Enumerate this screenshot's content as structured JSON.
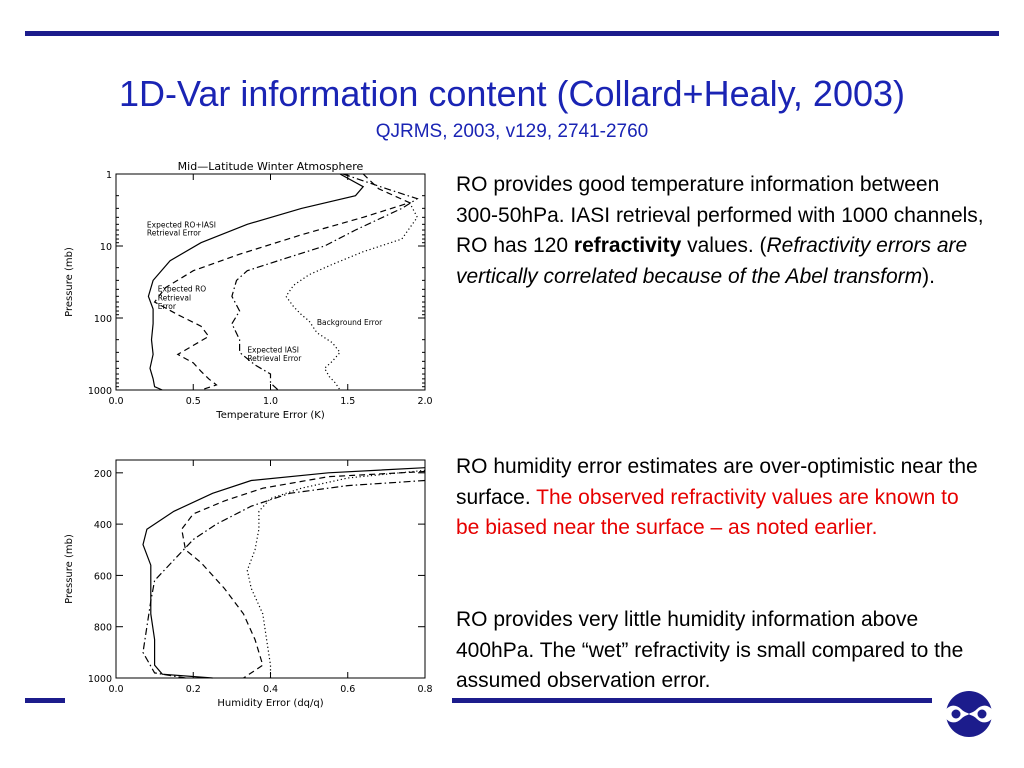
{
  "slide": {
    "title": "1D-Var information content (Collard+Healy, 2003)",
    "subtitle": "QJRMS, 2003, v129, 2741-2760"
  },
  "text": {
    "p1_part1": "RO provides good temperature information between 300-50hPa. IASI retrieval performed with 1000 channels, RO has 120 ",
    "p1_bold": "refractivity",
    "p1_part2": " values. (",
    "p1_italic": "Refractivity errors are vertically correlated because of the Abel transform",
    "p1_part3": ").",
    "p2_plain": "RO humidity error estimates are over-optimistic near the surface. ",
    "p2_red": "The observed refractivity values are known to be biased near the surface – as noted earlier.",
    "p3": "RO provides very little humidity information above 400hPa. The “wet” refractivity is small compared to the assumed observation error."
  },
  "colors": {
    "title": "#1a24b4",
    "rule": "#1c1c8c",
    "highlight": "#e60000",
    "logo": "#1c1c8c"
  },
  "logo_icon": "ecmwf-logo-icon",
  "chart_data": [
    {
      "type": "line",
      "title": "Mid—Latitude Winter Atmosphere",
      "xlabel": "Temperature Error (K)",
      "ylabel": "Pressure (mb)",
      "xlim": [
        0,
        2
      ],
      "ylim": [
        1000,
        1
      ],
      "y_scale": "log",
      "x_ticks": [
        "0.0",
        "0.5",
        "1.0",
        "1.5",
        "2.0"
      ],
      "y_ticks": [
        {
          "v": 1,
          "label": "1"
        },
        {
          "v": 10,
          "label": "10"
        },
        {
          "v": 100,
          "label": "100"
        },
        {
          "v": 1000,
          "label": "1000"
        }
      ],
      "annotations": [
        {
          "text": "Expected RO+IASI",
          "x": 0.2,
          "y": 5.5
        },
        {
          "text": "Retrieval Error",
          "x": 0.2,
          "y": 7.2
        },
        {
          "text": "Expected RO",
          "x": 0.27,
          "y": 43
        },
        {
          "text": "Retrieval",
          "x": 0.27,
          "y": 57
        },
        {
          "text": "Error",
          "x": 0.27,
          "y": 75
        },
        {
          "text": "Background Error",
          "x": 1.3,
          "y": 125
        },
        {
          "text": "Expected IASI",
          "x": 0.85,
          "y": 300
        },
        {
          "text": "Retrieval Error",
          "x": 0.85,
          "y": 395
        }
      ],
      "series": [
        {
          "style": "solid",
          "points": [
            [
              1.45,
              1
            ],
            [
              1.6,
              1.5
            ],
            [
              1.55,
              2
            ],
            [
              1.2,
              3
            ],
            [
              0.85,
              5
            ],
            [
              0.55,
              9
            ],
            [
              0.35,
              16
            ],
            [
              0.24,
              30
            ],
            [
              0.21,
              50
            ],
            [
              0.24,
              75
            ],
            [
              0.24,
              120
            ],
            [
              0.23,
              200
            ],
            [
              0.24,
              320
            ],
            [
              0.22,
              500
            ],
            [
              0.24,
              700
            ],
            [
              0.25,
              900
            ],
            [
              0.3,
              1000
            ]
          ]
        },
        {
          "style": "dashed",
          "points": [
            [
              1.6,
              1
            ],
            [
              1.7,
              1.6
            ],
            [
              1.9,
              2.5
            ],
            [
              1.6,
              4
            ],
            [
              1.2,
              7
            ],
            [
              0.8,
              13
            ],
            [
              0.5,
              22
            ],
            [
              0.32,
              38
            ],
            [
              0.25,
              60
            ],
            [
              0.4,
              90
            ],
            [
              0.55,
              130
            ],
            [
              0.6,
              180
            ],
            [
              0.5,
              240
            ],
            [
              0.4,
              320
            ],
            [
              0.5,
              420
            ],
            [
              0.55,
              550
            ],
            [
              0.6,
              700
            ],
            [
              0.65,
              850
            ],
            [
              0.55,
              1000
            ]
          ]
        },
        {
          "style": "dashdot",
          "points": [
            [
              1.47,
              1
            ],
            [
              1.75,
              1.6
            ],
            [
              1.95,
              2.2
            ],
            [
              1.85,
              3
            ],
            [
              1.55,
              6
            ],
            [
              1.35,
              10
            ],
            [
              1.05,
              16
            ],
            [
              0.85,
              22
            ],
            [
              0.78,
              30
            ],
            [
              0.75,
              50
            ],
            [
              0.8,
              80
            ],
            [
              0.75,
              120
            ],
            [
              0.8,
              200
            ],
            [
              0.8,
              300
            ],
            [
              0.9,
              450
            ],
            [
              1.0,
              600
            ],
            [
              1.0,
              800
            ],
            [
              1.05,
              1000
            ]
          ]
        },
        {
          "style": "dotted",
          "points": [
            [
              1.9,
              2.5
            ],
            [
              1.95,
              4
            ],
            [
              1.85,
              8
            ],
            [
              1.6,
              12
            ],
            [
              1.4,
              18
            ],
            [
              1.25,
              25
            ],
            [
              1.15,
              35
            ],
            [
              1.1,
              50
            ],
            [
              1.15,
              70
            ],
            [
              1.2,
              90
            ],
            [
              1.25,
              110
            ],
            [
              1.3,
              160
            ],
            [
              1.4,
              220
            ],
            [
              1.45,
              300
            ],
            [
              1.4,
              400
            ],
            [
              1.35,
              500
            ],
            [
              1.38,
              650
            ],
            [
              1.42,
              800
            ],
            [
              1.45,
              1000
            ]
          ]
        }
      ]
    },
    {
      "type": "line",
      "xlabel": "Humidity Error (dq/q)",
      "ylabel": "Pressure (mb)",
      "xlim": [
        0,
        0.8
      ],
      "ylim": [
        1000,
        150
      ],
      "y_scale": "linear",
      "x_ticks": [
        "0.0",
        "0.2",
        "0.4",
        "0.6",
        "0.8"
      ],
      "y_ticks": [
        {
          "v": 200,
          "label": "200"
        },
        {
          "v": 400,
          "label": "400"
        },
        {
          "v": 600,
          "label": "600"
        },
        {
          "v": 800,
          "label": "800"
        },
        {
          "v": 1000,
          "label": "1000"
        }
      ],
      "series": [
        {
          "style": "solid",
          "points": [
            [
              0.8,
              180
            ],
            [
              0.55,
              200
            ],
            [
              0.35,
              230
            ],
            [
              0.25,
              280
            ],
            [
              0.15,
              350
            ],
            [
              0.08,
              420
            ],
            [
              0.07,
              480
            ],
            [
              0.09,
              560
            ],
            [
              0.09,
              650
            ],
            [
              0.09,
              750
            ],
            [
              0.1,
              850
            ],
            [
              0.1,
              950
            ],
            [
              0.12,
              985
            ],
            [
              0.25,
              1000
            ]
          ]
        },
        {
          "style": "dashed",
          "points": [
            [
              0.8,
              195
            ],
            [
              0.55,
              215
            ],
            [
              0.38,
              260
            ],
            [
              0.28,
              310
            ],
            [
              0.2,
              360
            ],
            [
              0.17,
              420
            ],
            [
              0.18,
              500
            ],
            [
              0.22,
              550
            ],
            [
              0.28,
              650
            ],
            [
              0.33,
              750
            ],
            [
              0.36,
              850
            ],
            [
              0.38,
              950
            ],
            [
              0.33,
              1000
            ]
          ]
        },
        {
          "style": "dashdot",
          "points": [
            [
              0.8,
              230
            ],
            [
              0.6,
              250
            ],
            [
              0.45,
              280
            ],
            [
              0.35,
              330
            ],
            [
              0.26,
              400
            ],
            [
              0.2,
              460
            ],
            [
              0.15,
              540
            ],
            [
              0.1,
              620
            ],
            [
              0.09,
              700
            ],
            [
              0.08,
              800
            ],
            [
              0.07,
              900
            ],
            [
              0.1,
              980
            ],
            [
              0.18,
              1000
            ]
          ]
        },
        {
          "style": "dotted",
          "points": [
            [
              0.8,
              190
            ],
            [
              0.6,
              220
            ],
            [
              0.48,
              260
            ],
            [
              0.4,
              300
            ],
            [
              0.37,
              350
            ],
            [
              0.37,
              420
            ],
            [
              0.36,
              500
            ],
            [
              0.34,
              580
            ],
            [
              0.35,
              650
            ],
            [
              0.38,
              750
            ],
            [
              0.39,
              850
            ],
            [
              0.4,
              950
            ],
            [
              0.4,
              1000
            ]
          ]
        }
      ]
    }
  ]
}
